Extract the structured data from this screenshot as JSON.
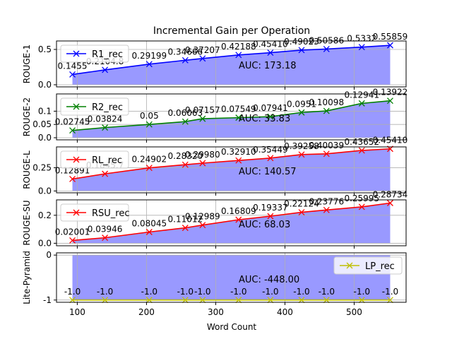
{
  "chart_data": {
    "title": "Incremental Gain per Operation",
    "xlabel": "Word Count",
    "x": [
      93,
      140,
      204,
      256,
      281,
      333,
      379,
      424,
      460,
      511,
      552
    ],
    "xlim": [
      70,
      575
    ],
    "xticks": [
      100,
      200,
      300,
      400,
      500
    ],
    "grid": true,
    "legend_position": "upper-left",
    "panels": [
      {
        "type": "line",
        "ylabel": "ROUGE-1",
        "ylim": [
          -0.03,
          0.62
        ],
        "yticks": [
          0.0,
          0.5
        ],
        "series": [
          {
            "name": "R1_rec",
            "color": "#0000ff",
            "values": [
              0.14555,
              0.21048,
              0.29199,
              0.34666,
              0.37207,
              0.42188,
              0.4541,
              0.49023,
              0.50586,
              0.5332,
              0.55859
            ]
          }
        ],
        "point_labels": [
          "0.1455",
          "0.2104.8",
          "0.29199",
          "0.34666",
          "0.37207",
          "0.42188",
          "0.45410",
          "0.49023",
          "0.50586",
          "0.5332",
          "0.55859"
        ],
        "auc_label": "AUC: 173.18",
        "legend_position": "upper-left"
      },
      {
        "type": "line",
        "ylabel": "ROUGE-2",
        "ylim": [
          -0.008,
          0.165
        ],
        "yticks": [
          0.0,
          0.05,
          0.1
        ],
        "series": [
          {
            "name": "R2_rec",
            "color": "#008000",
            "values": [
              0.02745,
              0.03824,
              0.05,
              0.06063,
              0.07157,
              0.07549,
              0.07941,
              0.0951,
              0.10098,
              0.12941,
              0.13922
            ]
          }
        ],
        "point_labels": [
          "0.02745",
          "0.03824",
          "0.05",
          "0.06063",
          "0.07157",
          "0.07549",
          "0.07941",
          "0.0951",
          "0.10098",
          "0.12941",
          "0.13922"
        ],
        "auc_label": "AUC: 33.83",
        "legend_position": "upper-left"
      },
      {
        "type": "line",
        "ylabel": "ROUGE-L",
        "ylim": [
          -0.02,
          0.475
        ],
        "yticks": [
          0.0,
          0.25
        ],
        "series": [
          {
            "name": "RL_rec",
            "color": "#ff0000",
            "values": [
              0.12891,
              0.18457,
              0.24902,
              0.2832,
              0.2998,
              0.3291,
              0.35449,
              0.39258,
              0.40039,
              0.43652,
              0.4541
            ]
          }
        ],
        "point_labels": [
          "0.12891",
          "0.1845.7",
          "0.24902",
          "0.28320",
          "0.29980",
          "0.32910",
          "0.35449",
          "0.39258",
          "0.40039",
          "0.43652",
          "0.45410"
        ],
        "auc_label": "AUC: 140.57",
        "legend_position": "upper-left"
      },
      {
        "type": "line",
        "ylabel": "ROUGE-SU",
        "ylim": [
          -0.018,
          0.31
        ],
        "yticks": [
          0.0,
          0.2
        ],
        "series": [
          {
            "name": "RSU_rec",
            "color": "#ff0000",
            "values": [
              0.02001,
              0.03946,
              0.08045,
              0.11012,
              0.12989,
              0.16809,
              0.19337,
              0.22124,
              0.23776,
              0.25995,
              0.28734
            ]
          }
        ],
        "point_labels": [
          "0.02001",
          "0.03946",
          "0.08045",
          "0.11012",
          "0.12989",
          "0.16809",
          "0.19337",
          "0.22124",
          "0.23776",
          "0.25995",
          "0.28734"
        ],
        "auc_label": "AUC: 68.03",
        "legend_position": "upper-left"
      },
      {
        "type": "line",
        "ylabel": "Lite-Pyramid",
        "ylim": [
          -1.05,
          0.05
        ],
        "yticks": [
          -1,
          0
        ],
        "series": [
          {
            "name": "LP_rec",
            "color": "#bfbf00",
            "values": [
              -1,
              -1,
              -1,
              -1,
              -1,
              -1,
              -1,
              -1,
              -1,
              -1,
              -1
            ]
          }
        ],
        "point_labels": [
          "-1.0",
          "-1.0",
          "-1.0",
          "-1.0",
          "-1.0",
          "-1.0",
          "-1.0",
          "-1.0",
          "-1.0",
          "-1.0",
          "-1.0"
        ],
        "auc_label": "AUC: -448.00",
        "legend_position": "upper-right"
      }
    ]
  }
}
